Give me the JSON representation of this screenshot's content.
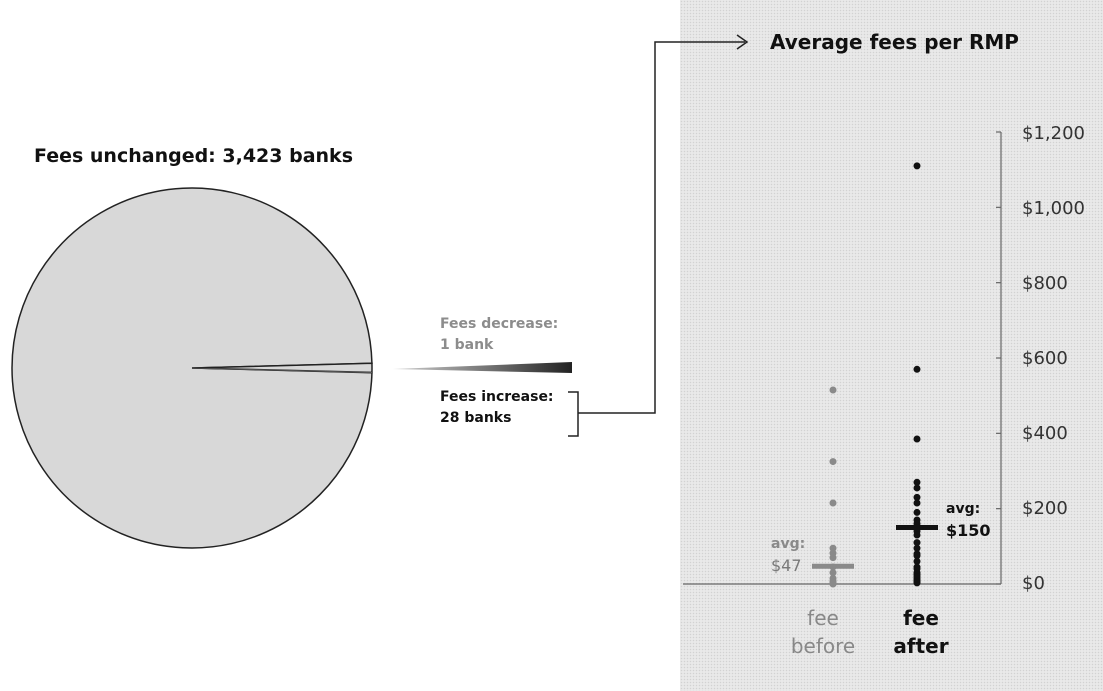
{
  "pie": {
    "title": "Fees unchanged: 3,423 banks",
    "slices": [
      {
        "key": "unchanged",
        "count": 3423,
        "color": "#d8d8d8"
      },
      {
        "key": "decrease",
        "count": 1,
        "color": "#a0a0a0"
      },
      {
        "key": "increase",
        "count": 28,
        "color": "#d8d8d8"
      }
    ],
    "decrease_label_1": "Fees decrease:",
    "decrease_label_2": "1 bank",
    "increase_label_1": "Fees increase:",
    "increase_label_2": "28 banks"
  },
  "chart_data": {
    "type": "scatter",
    "title": "Average fees per RMP",
    "categories": [
      "fee before",
      "fee after"
    ],
    "category_labels": [
      [
        "fee",
        "before"
      ],
      [
        "fee",
        "after"
      ]
    ],
    "ylim": [
      0,
      1200
    ],
    "yticks": [
      "$0",
      "$200",
      "$400",
      "$600",
      "$800",
      "$1,000",
      "$1,200"
    ],
    "series": [
      {
        "name": "fee before",
        "color": "#8a8a8a",
        "values": [
          515,
          325,
          215,
          95,
          82,
          70,
          45,
          30,
          15,
          8,
          5,
          3,
          2,
          1,
          0
        ],
        "average": 47,
        "avg_title": "avg:",
        "avg_value": "$47"
      },
      {
        "name": "fee after",
        "color": "#111111",
        "values": [
          1110,
          570,
          385,
          270,
          255,
          230,
          215,
          190,
          170,
          160,
          150,
          140,
          130,
          110,
          95,
          80,
          75,
          60,
          45,
          40,
          30,
          25,
          20,
          15,
          10,
          8,
          5,
          3
        ],
        "average": 150,
        "avg_title": "avg:",
        "avg_value": "$150"
      }
    ]
  }
}
